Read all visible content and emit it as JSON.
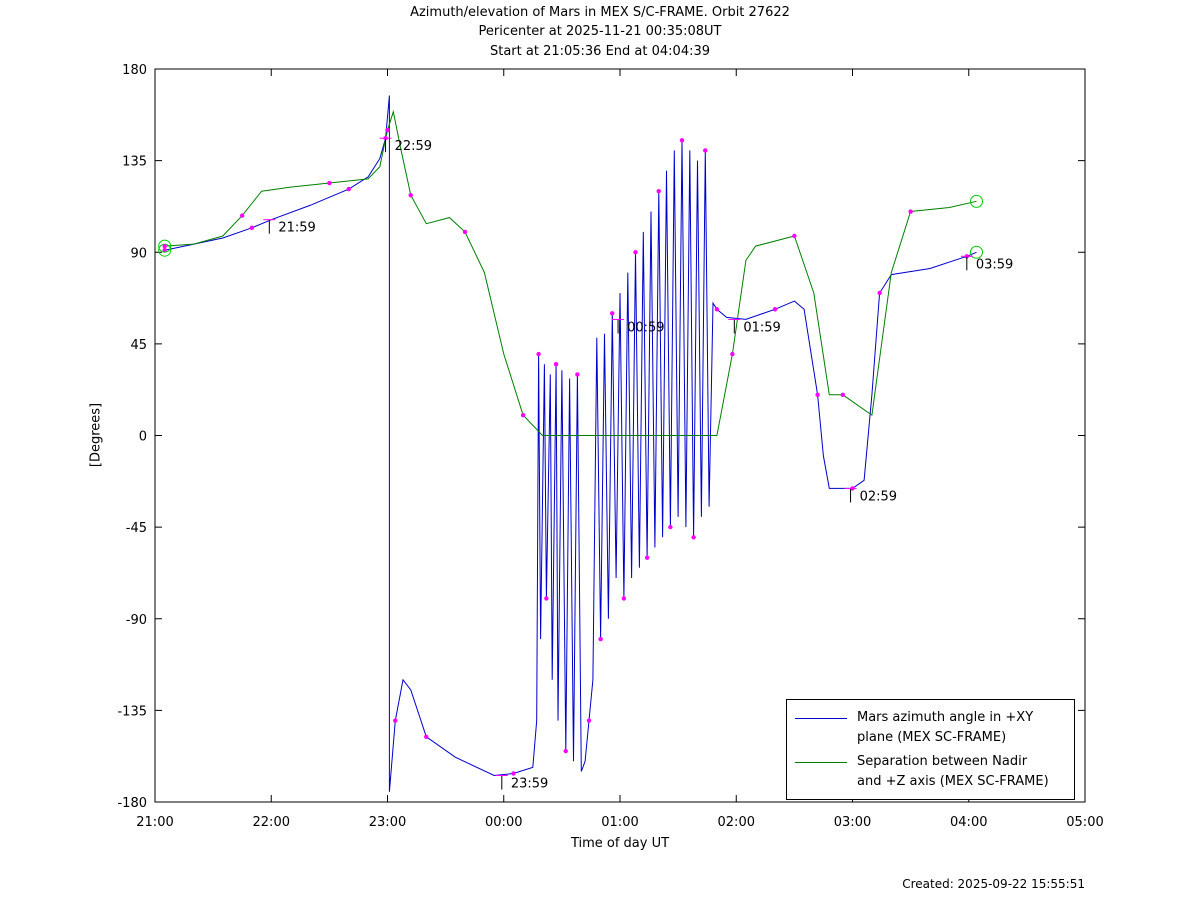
{
  "title_lines": [
    "Azimuth/elevation of Mars in MEX S/C-FRAME.  Orbit 27622",
    "Pericenter at 2025-11-21 00:35:08UT",
    "Start at 21:05:36 End at 04:04:39"
  ],
  "xlabel": "Time of day UT",
  "ylabel": "[Degrees]",
  "created": "Created: 2025-09-22 15:55:51",
  "legend": [
    {
      "line1": "Mars azimuth angle in +XY",
      "line2": "plane (MEX SC-FRAME)",
      "color": "#0000cc"
    },
    {
      "line1": "Separation between Nadir",
      "line2": "and +Z axis (MEX SC-FRAME)",
      "color": "#008000"
    }
  ],
  "chart_data": {
    "type": "line",
    "title": "Azimuth/elevation of Mars in MEX S/C-FRAME.  Orbit 27622",
    "xlabel": "Time of day UT",
    "ylabel": "[Degrees]",
    "xlim": [
      "21:00",
      "05:00"
    ],
    "ylim": [
      -180,
      180
    ],
    "x_ticks": [
      "21:00",
      "22:00",
      "23:00",
      "00:00",
      "01:00",
      "02:00",
      "03:00",
      "04:00",
      "05:00"
    ],
    "y_ticks": [
      180,
      135,
      90,
      45,
      0,
      -45,
      -90,
      -135,
      -180
    ],
    "marker_color": "#ff00ff",
    "circle_color": "#00cc00",
    "series": [
      {
        "name": "Mars azimuth angle in +XY plane (MEX SC-FRAME)",
        "color": "#0000cc",
        "points": [
          [
            "21:05",
            91
          ],
          [
            "21:20",
            94
          ],
          [
            "21:35",
            97
          ],
          [
            "21:50",
            102
          ],
          [
            "22:00",
            106
          ],
          [
            "22:20",
            113
          ],
          [
            "22:40",
            121
          ],
          [
            "22:50",
            127
          ],
          [
            "22:56",
            136
          ],
          [
            "22:59",
            146
          ],
          [
            "23:01",
            167
          ],
          [
            "23:01",
            -175
          ],
          [
            "23:04",
            -140
          ],
          [
            "23:08",
            -120
          ],
          [
            "23:12",
            -125
          ],
          [
            "23:20",
            -148
          ],
          [
            "23:35",
            -158
          ],
          [
            "23:55",
            -167
          ],
          [
            "00:05",
            -166
          ],
          [
            "00:15",
            -163
          ],
          [
            "00:17",
            -140
          ],
          [
            "00:18",
            40
          ],
          [
            "00:19",
            -100
          ],
          [
            "00:21",
            35
          ],
          [
            "00:22",
            -80
          ],
          [
            "00:24",
            30
          ],
          [
            "00:25",
            -120
          ],
          [
            "00:27",
            35
          ],
          [
            "00:28",
            -140
          ],
          [
            "00:30",
            32
          ],
          [
            "00:32",
            -155
          ],
          [
            "00:34",
            28
          ],
          [
            "00:36",
            -160
          ],
          [
            "00:38",
            30
          ],
          [
            "00:40",
            -165
          ],
          [
            "00:42",
            -160
          ],
          [
            "00:44",
            -140
          ],
          [
            "00:46",
            -120
          ],
          [
            "00:48",
            48
          ],
          [
            "00:50",
            -100
          ],
          [
            "00:52",
            50
          ],
          [
            "00:54",
            -90
          ],
          [
            "00:56",
            60
          ],
          [
            "00:58",
            -70
          ],
          [
            "01:00",
            70
          ],
          [
            "01:02",
            -80
          ],
          [
            "01:04",
            80
          ],
          [
            "01:06",
            -70
          ],
          [
            "01:08",
            90
          ],
          [
            "01:10",
            -65
          ],
          [
            "01:12",
            100
          ],
          [
            "01:14",
            -60
          ],
          [
            "01:16",
            110
          ],
          [
            "01:18",
            -55
          ],
          [
            "01:20",
            120
          ],
          [
            "01:22",
            -50
          ],
          [
            "01:24",
            130
          ],
          [
            "01:26",
            -45
          ],
          [
            "01:28",
            140
          ],
          [
            "01:30",
            -40
          ],
          [
            "01:32",
            145
          ],
          [
            "01:34",
            -45
          ],
          [
            "01:36",
            140
          ],
          [
            "01:38",
            -50
          ],
          [
            "01:40",
            135
          ],
          [
            "01:42",
            -40
          ],
          [
            "01:44",
            140
          ],
          [
            "01:46",
            -35
          ],
          [
            "01:48",
            65
          ],
          [
            "01:50",
            62
          ],
          [
            "01:55",
            58
          ],
          [
            "02:05",
            57
          ],
          [
            "02:20",
            62
          ],
          [
            "02:30",
            66
          ],
          [
            "02:35",
            62
          ],
          [
            "02:42",
            20
          ],
          [
            "02:45",
            -10
          ],
          [
            "02:48",
            -26
          ],
          [
            "03:00",
            -26
          ],
          [
            "03:06",
            -22
          ],
          [
            "03:10",
            20
          ],
          [
            "03:14",
            70
          ],
          [
            "03:20",
            79
          ],
          [
            "03:40",
            82
          ],
          [
            "03:59",
            88
          ],
          [
            "04:04",
            90
          ]
        ]
      },
      {
        "name": "Separation between Nadir and +Z axis (MEX SC-FRAME)",
        "color": "#008000",
        "points": [
          [
            "21:05",
            93
          ],
          [
            "21:20",
            94
          ],
          [
            "21:35",
            98
          ],
          [
            "21:45",
            108
          ],
          [
            "21:55",
            120
          ],
          [
            "22:10",
            122
          ],
          [
            "22:30",
            124
          ],
          [
            "22:50",
            126
          ],
          [
            "22:56",
            132
          ],
          [
            "23:00",
            150
          ],
          [
            "23:03",
            159
          ],
          [
            "23:07",
            140
          ],
          [
            "23:12",
            118
          ],
          [
            "23:20",
            104
          ],
          [
            "23:32",
            107
          ],
          [
            "23:40",
            100
          ],
          [
            "23:50",
            80
          ],
          [
            "24:00",
            40
          ],
          [
            "24:10",
            10
          ],
          [
            "24:20",
            0
          ],
          [
            "25:50",
            0
          ],
          [
            "25:58",
            40
          ],
          [
            "26:05",
            86
          ],
          [
            "26:10",
            93
          ],
          [
            "26:30",
            98
          ],
          [
            "26:40",
            70
          ],
          [
            "26:48",
            20
          ],
          [
            "26:55",
            20
          ],
          [
            "27:10",
            10
          ],
          [
            "27:20",
            80
          ],
          [
            "27:30",
            110
          ],
          [
            "27:50",
            112
          ],
          [
            "28:04",
            115
          ]
        ]
      }
    ],
    "annotations": [
      "21:59",
      "22:59",
      "23:59",
      "00:59",
      "01:59",
      "02:59",
      "03:59"
    ]
  }
}
